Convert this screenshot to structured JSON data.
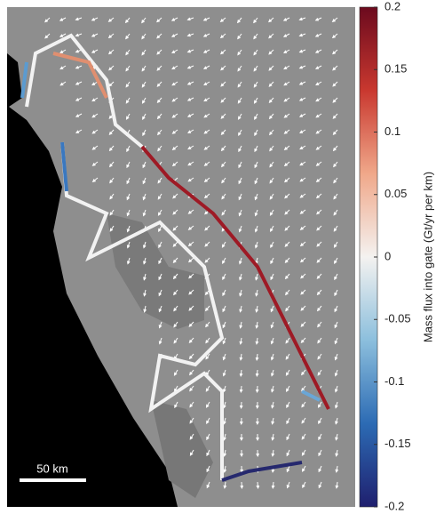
{
  "colorbar": {
    "label": "Mass flux into gate (Gt/yr per km)",
    "lim": [
      -0.2,
      0.2
    ],
    "ticks": [
      -0.2,
      -0.15,
      -0.1,
      -0.05,
      0,
      0.05,
      0.1,
      0.15,
      0.2
    ],
    "colors": [
      "#1f1f6e",
      "#2c6bb4",
      "#8cbfdd",
      "#f4f2f0",
      "#f0a88a",
      "#c9382f",
      "#6b0a1e"
    ]
  },
  "scale_bar": {
    "label": "50 km"
  }
}
